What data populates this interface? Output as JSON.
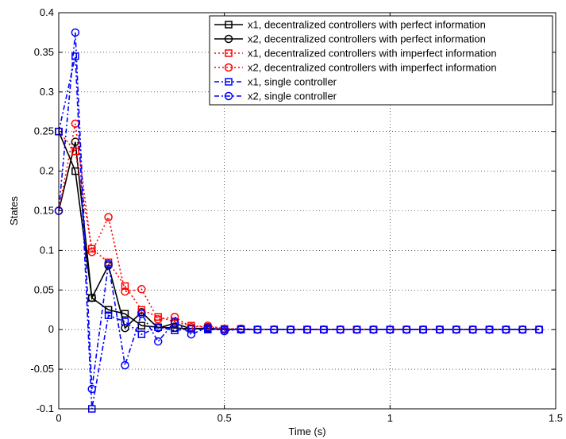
{
  "chart_data": {
    "type": "line",
    "xlabel": "Time (s)",
    "ylabel": "States",
    "xlim": [
      0,
      1.5
    ],
    "ylim": [
      -0.1,
      0.4
    ],
    "xticks": [
      0,
      0.5,
      1,
      1.5
    ],
    "yticks": [
      -0.1,
      -0.05,
      0,
      0.05,
      0.1,
      0.15,
      0.2,
      0.25,
      0.3,
      0.35,
      0.4
    ],
    "grid": true,
    "legend_position": "top-right",
    "series": [
      {
        "name": "x1, decentralized controllers with perfect information",
        "color": "#000000",
        "linestyle": "solid",
        "marker": "square",
        "x": [
          0,
          0.05,
          0.1,
          0.15,
          0.2,
          0.25,
          0.3,
          0.35,
          0.4,
          0.45,
          0.5,
          0.55,
          0.6,
          0.65,
          0.7,
          0.75,
          0.8,
          0.85,
          0.9,
          0.95,
          1.0,
          1.05,
          1.1,
          1.15,
          1.2,
          1.25,
          1.3,
          1.35,
          1.4,
          1.45
        ],
        "values": [
          0.25,
          0.2,
          0.04,
          0.025,
          0.02,
          0.005,
          0.003,
          0.002,
          0.001,
          0.001,
          0,
          0,
          0,
          0,
          0,
          0,
          0,
          0,
          0,
          0,
          0,
          0,
          0,
          0,
          0,
          0,
          0,
          0,
          0,
          0
        ]
      },
      {
        "name": "x2, decentralized controllers with perfect information",
        "color": "#000000",
        "linestyle": "solid",
        "marker": "circle",
        "x": [
          0,
          0.05,
          0.1,
          0.15,
          0.2,
          0.25,
          0.3,
          0.35,
          0.4,
          0.45,
          0.5,
          0.55,
          0.6,
          0.65,
          0.7,
          0.75,
          0.8,
          0.85,
          0.9,
          0.95,
          1.0,
          1.05,
          1.1,
          1.15,
          1.2,
          1.25,
          1.3,
          1.35,
          1.4,
          1.45
        ],
        "values": [
          0.15,
          0.237,
          0.04,
          0.081,
          0.002,
          0.022,
          0.002,
          0.008,
          0.001,
          0.002,
          0,
          0,
          0,
          0,
          0,
          0,
          0,
          0,
          0,
          0,
          0,
          0,
          0,
          0,
          0,
          0,
          0,
          0,
          0,
          0
        ]
      },
      {
        "name": "x1, decentralized controllers with imperfect information",
        "color": "#ff0000",
        "linestyle": "dotted",
        "marker": "square",
        "x": [
          0,
          0.05,
          0.1,
          0.15,
          0.2,
          0.25,
          0.3,
          0.35,
          0.4,
          0.45,
          0.5,
          0.55,
          0.6,
          0.65,
          0.7,
          0.75,
          0.8,
          0.85,
          0.9,
          0.95,
          1.0,
          1.05,
          1.1,
          1.15,
          1.2,
          1.25,
          1.3,
          1.35,
          1.4,
          1.45
        ],
        "values": [
          0.25,
          0.225,
          0.102,
          0.085,
          0.055,
          0.025,
          0.016,
          0.01,
          0.005,
          0.003,
          0.001,
          0.001,
          0,
          0,
          0,
          0,
          0,
          0,
          0,
          0,
          0,
          0,
          0,
          0,
          0,
          0,
          0,
          0,
          0,
          0
        ]
      },
      {
        "name": "x2, decentralized controllers with imperfect information",
        "color": "#ff0000",
        "linestyle": "dotted",
        "marker": "circle",
        "x": [
          0,
          0.05,
          0.1,
          0.15,
          0.2,
          0.25,
          0.3,
          0.35,
          0.4,
          0.45,
          0.5,
          0.55,
          0.6,
          0.65,
          0.7,
          0.75,
          0.8,
          0.85,
          0.9,
          0.95,
          1.0,
          1.05,
          1.1,
          1.15,
          1.2,
          1.25,
          1.3,
          1.35,
          1.4,
          1.45
        ],
        "values": [
          0.15,
          0.26,
          0.098,
          0.142,
          0.048,
          0.051,
          0.013,
          0.016,
          0.003,
          0.005,
          0.001,
          0.001,
          0,
          0,
          0,
          0,
          0,
          0,
          0,
          0,
          0,
          0,
          0,
          0,
          0,
          0,
          0,
          0,
          0,
          0
        ]
      },
      {
        "name": "x1, single controller",
        "color": "#0000ff",
        "linestyle": "dashdot",
        "marker": "square",
        "x": [
          0,
          0.05,
          0.1,
          0.15,
          0.2,
          0.25,
          0.3,
          0.35,
          0.4,
          0.45,
          0.5,
          0.55,
          0.6,
          0.65,
          0.7,
          0.75,
          0.8,
          0.85,
          0.9,
          0.95,
          1.0,
          1.05,
          1.1,
          1.15,
          1.2,
          1.25,
          1.3,
          1.35,
          1.4,
          1.45
        ],
        "values": [
          0.25,
          0.345,
          -0.1,
          0.018,
          0.01,
          -0.006,
          0.003,
          -0.001,
          0.001,
          0,
          0,
          0,
          0,
          0,
          0,
          0,
          0,
          0,
          0,
          0,
          0,
          0,
          0,
          0,
          0,
          0,
          0,
          0,
          0,
          0
        ]
      },
      {
        "name": "x2, single controller",
        "color": "#0000ff",
        "linestyle": "dashdot",
        "marker": "circle",
        "x": [
          0,
          0.05,
          0.1,
          0.15,
          0.2,
          0.25,
          0.3,
          0.35,
          0.4,
          0.45,
          0.5,
          0.55,
          0.6,
          0.65,
          0.7,
          0.75,
          0.8,
          0.85,
          0.9,
          0.95,
          1.0,
          1.05,
          1.1,
          1.15,
          1.2,
          1.25,
          1.3,
          1.35,
          1.4,
          1.45
        ],
        "values": [
          0.15,
          0.375,
          -0.075,
          0.083,
          -0.045,
          0.02,
          -0.015,
          0.01,
          -0.006,
          0.003,
          -0.002,
          0.001,
          0,
          0,
          0,
          0,
          0,
          0,
          0,
          0,
          0,
          0,
          0,
          0,
          0,
          0,
          0,
          0,
          0,
          0
        ]
      }
    ]
  }
}
